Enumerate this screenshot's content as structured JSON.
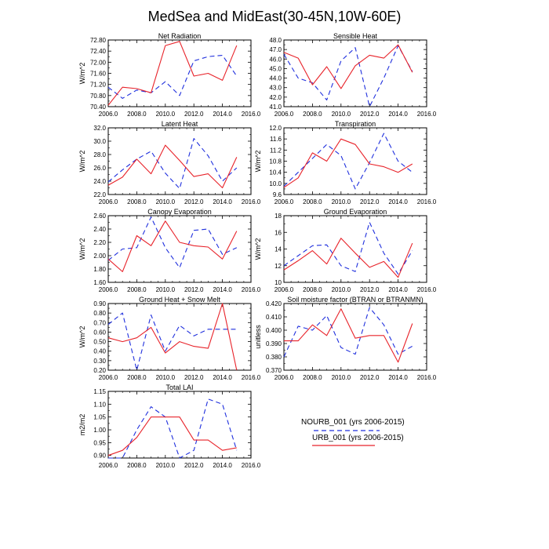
{
  "figure": {
    "title": "MedSea and MidEast(30-45N,10W-60E)"
  },
  "legend": {
    "entries": [
      {
        "name": "NOURB_001 (yrs 2006-2015)",
        "color": "#1f2fdd",
        "style": "dashed"
      },
      {
        "name": "URB_001 (yrs 2006-2015)",
        "color": "#e8232a",
        "style": "solid"
      }
    ]
  },
  "chart_data": [
    {
      "type": "line",
      "title": "Net Radiation",
      "ylabel": "W/m^2",
      "xlim": [
        2006,
        2016
      ],
      "xticks": [
        2006,
        2008,
        2010,
        2012,
        2014,
        2016
      ],
      "xtick_labels": [
        "2006.0",
        "2008.0",
        "2010.0",
        "2012.0",
        "2014.0",
        "2016.0"
      ],
      "ylim": [
        70.4,
        72.8
      ],
      "yticks": [
        70.4,
        70.8,
        71.2,
        71.6,
        72.0,
        72.4,
        72.8
      ],
      "ytick_labels": [
        "70.40",
        "70.80",
        "71.20",
        "71.60",
        "72.00",
        "72.40",
        "72.80"
      ],
      "x": [
        2006,
        2007,
        2008,
        2009,
        2010,
        2011,
        2012,
        2013,
        2014,
        2015
      ],
      "series": [
        {
          "name": "NOURB_001",
          "values": [
            71.1,
            70.7,
            71.0,
            70.9,
            71.3,
            70.8,
            72.05,
            72.2,
            72.25,
            71.5
          ]
        },
        {
          "name": "URB_001",
          "values": [
            70.45,
            71.1,
            71.05,
            70.9,
            72.6,
            72.75,
            71.5,
            71.6,
            71.35,
            72.6
          ]
        }
      ]
    },
    {
      "type": "line",
      "title": "Sensible Heat",
      "ylabel": "",
      "xlim": [
        2006,
        2016
      ],
      "xticks": [
        2006,
        2008,
        2010,
        2012,
        2014,
        2016
      ],
      "xtick_labels": [
        "2006.0",
        "2008.0",
        "2010.0",
        "2012.0",
        "2014.0",
        "2016.0"
      ],
      "ylim": [
        41,
        48
      ],
      "yticks": [
        41,
        42,
        43,
        44,
        45,
        46,
        47,
        48
      ],
      "ytick_labels": [
        "41.0",
        "42.0",
        "43.0",
        "44.0",
        "45.0",
        "46.0",
        "47.0",
        "48.0"
      ],
      "x": [
        2006,
        2007,
        2008,
        2009,
        2010,
        2011,
        2012,
        2013,
        2014,
        2015
      ],
      "series": [
        {
          "name": "NOURB_001",
          "values": [
            46.5,
            44.0,
            43.5,
            41.7,
            45.8,
            47.2,
            41.0,
            44.0,
            47.4,
            44.7
          ]
        },
        {
          "name": "URB_001",
          "values": [
            46.7,
            46.1,
            43.3,
            45.2,
            42.9,
            45.3,
            46.4,
            46.1,
            47.5,
            44.6
          ]
        }
      ]
    },
    {
      "type": "line",
      "title": "Latent Heat",
      "ylabel": "W/m^2",
      "xlim": [
        2006,
        2016
      ],
      "xticks": [
        2006,
        2008,
        2010,
        2012,
        2014,
        2016
      ],
      "xtick_labels": [
        "2006.0",
        "2008.0",
        "2010.0",
        "2012.0",
        "2014.0",
        "2016.0"
      ],
      "ylim": [
        22,
        32
      ],
      "yticks": [
        22,
        24,
        26,
        28,
        30,
        32
      ],
      "ytick_labels": [
        "22.0",
        "24.0",
        "26.0",
        "28.0",
        "30.0",
        "32.0"
      ],
      "x": [
        2006,
        2007,
        2008,
        2009,
        2010,
        2011,
        2012,
        2013,
        2014,
        2015
      ],
      "series": [
        {
          "name": "NOURB_001",
          "values": [
            23.9,
            25.7,
            27.3,
            28.5,
            25.2,
            22.9,
            30.4,
            27.8,
            24.0,
            26.0
          ]
        },
        {
          "name": "URB_001",
          "values": [
            23.4,
            24.6,
            27.3,
            25.1,
            29.4,
            27.1,
            24.7,
            25.1,
            23.0,
            27.6
          ]
        }
      ]
    },
    {
      "type": "line",
      "title": "Transpiration",
      "ylabel": "W/m^2",
      "xlim": [
        2006,
        2016
      ],
      "xticks": [
        2006,
        2008,
        2010,
        2012,
        2014,
        2016
      ],
      "xtick_labels": [
        "2006.0",
        "2008.0",
        "2010.0",
        "2012.0",
        "2014.0",
        "2016.0"
      ],
      "ylim": [
        9.6,
        12.0
      ],
      "yticks": [
        9.6,
        10.0,
        10.4,
        10.8,
        11.2,
        11.6,
        12.0
      ],
      "ytick_labels": [
        "9.6",
        "10.0",
        "10.4",
        "10.8",
        "11.2",
        "11.6",
        "12.0"
      ],
      "x": [
        2006,
        2007,
        2008,
        2009,
        2010,
        2011,
        2012,
        2013,
        2014,
        2015
      ],
      "series": [
        {
          "name": "NOURB_001",
          "values": [
            9.9,
            10.4,
            10.9,
            11.4,
            11.0,
            9.8,
            10.75,
            11.8,
            10.8,
            10.4
          ]
        },
        {
          "name": "URB_001",
          "values": [
            9.85,
            10.2,
            11.1,
            10.8,
            11.6,
            11.4,
            10.7,
            10.6,
            10.4,
            10.7
          ]
        }
      ]
    },
    {
      "type": "line",
      "title": "Canopy Evaporation",
      "ylabel": "W/m^2",
      "xlim": [
        2006,
        2016
      ],
      "xticks": [
        2006,
        2008,
        2010,
        2012,
        2014,
        2016
      ],
      "xtick_labels": [
        "2006.0",
        "2008.0",
        "2010.0",
        "2012.0",
        "2014.0",
        "2016.0"
      ],
      "ylim": [
        1.6,
        2.6
      ],
      "yticks": [
        1.6,
        1.8,
        2.0,
        2.2,
        2.4,
        2.6
      ],
      "ytick_labels": [
        "1.60",
        "1.80",
        "2.00",
        "2.20",
        "2.40",
        "2.60"
      ],
      "x": [
        2006,
        2007,
        2008,
        2009,
        2010,
        2011,
        2012,
        2013,
        2014,
        2015
      ],
      "series": [
        {
          "name": "NOURB_001",
          "values": [
            1.93,
            2.1,
            2.12,
            2.58,
            2.12,
            1.82,
            2.38,
            2.4,
            2.02,
            2.12
          ]
        },
        {
          "name": "URB_001",
          "values": [
            1.95,
            1.76,
            2.3,
            2.15,
            2.52,
            2.2,
            2.15,
            2.13,
            1.95,
            2.37
          ]
        }
      ]
    },
    {
      "type": "line",
      "title": "Ground Evaporation",
      "ylabel": "W/m^2",
      "xlim": [
        2006,
        2016
      ],
      "xticks": [
        2006,
        2008,
        2010,
        2012,
        2014,
        2016
      ],
      "xtick_labels": [
        "2006.0",
        "2008.0",
        "2010.0",
        "2012.0",
        "2014.0",
        "2016.0"
      ],
      "ylim": [
        10,
        18
      ],
      "yticks": [
        10,
        12,
        14,
        16,
        18
      ],
      "ytick_labels": [
        "10",
        "12",
        "14",
        "16",
        "18"
      ],
      "x": [
        2006,
        2007,
        2008,
        2009,
        2010,
        2011,
        2012,
        2013,
        2014,
        2015
      ],
      "series": [
        {
          "name": "NOURB_001",
          "values": [
            12.0,
            13.2,
            14.4,
            14.5,
            12.0,
            11.3,
            17.2,
            13.5,
            11.0,
            13.8
          ]
        },
        {
          "name": "URB_001",
          "values": [
            11.5,
            12.6,
            13.8,
            12.2,
            15.3,
            13.5,
            11.8,
            12.5,
            10.6,
            14.7
          ]
        }
      ]
    },
    {
      "type": "line",
      "title": "Ground Heat + Snow Melt",
      "ylabel": "W/m^2",
      "xlim": [
        2006,
        2016
      ],
      "xticks": [
        2006,
        2008,
        2010,
        2012,
        2014,
        2016
      ],
      "xtick_labels": [
        "2006.0",
        "2008.0",
        "2010.0",
        "2012.0",
        "2014.0",
        "2016.0"
      ],
      "ylim": [
        0.2,
        0.9
      ],
      "yticks": [
        0.2,
        0.3,
        0.4,
        0.5,
        0.6,
        0.7,
        0.8,
        0.9
      ],
      "ytick_labels": [
        "0.20",
        "0.30",
        "0.40",
        "0.50",
        "0.60",
        "0.70",
        "0.80",
        "0.90"
      ],
      "x": [
        2006,
        2007,
        2008,
        2009,
        2010,
        2011,
        2012,
        2013,
        2014,
        2015
      ],
      "series": [
        {
          "name": "NOURB_001",
          "values": [
            0.68,
            0.8,
            0.2,
            0.78,
            0.4,
            0.67,
            0.56,
            0.63,
            0.63,
            0.63
          ]
        },
        {
          "name": "URB_001",
          "values": [
            0.54,
            0.5,
            0.54,
            0.65,
            0.38,
            0.5,
            0.45,
            0.43,
            0.9,
            0.2
          ]
        }
      ]
    },
    {
      "type": "line",
      "title": "Soil moisture factor (BTRAN or BTRANMN)",
      "ylabel": "unitless",
      "xlim": [
        2006,
        2016
      ],
      "xticks": [
        2006,
        2008,
        2010,
        2012,
        2014,
        2016
      ],
      "xtick_labels": [
        "2006.0",
        "2008.0",
        "2010.0",
        "2012.0",
        "2014.0",
        "2016.0"
      ],
      "ylim": [
        0.37,
        0.42
      ],
      "yticks": [
        0.37,
        0.38,
        0.39,
        0.4,
        0.41,
        0.42
      ],
      "ytick_labels": [
        "0.370",
        "0.380",
        "0.390",
        "0.400",
        "0.410",
        "0.420"
      ],
      "x": [
        2006,
        2007,
        2008,
        2009,
        2010,
        2011,
        2012,
        2013,
        2014,
        2015
      ],
      "series": [
        {
          "name": "NOURB_001",
          "values": [
            0.38,
            0.403,
            0.4,
            0.411,
            0.387,
            0.382,
            0.417,
            0.404,
            0.382,
            0.388
          ]
        },
        {
          "name": "URB_001",
          "values": [
            0.392,
            0.392,
            0.404,
            0.396,
            0.416,
            0.394,
            0.396,
            0.396,
            0.376,
            0.405
          ]
        }
      ]
    },
    {
      "type": "line",
      "title": "Total LAI",
      "ylabel": "m2/m2",
      "xlim": [
        2006,
        2016
      ],
      "xticks": [
        2006,
        2008,
        2010,
        2012,
        2014,
        2016
      ],
      "xtick_labels": [
        "2006.0",
        "2008.0",
        "2010.0",
        "2012.0",
        "2014.0",
        "2016.0"
      ],
      "ylim": [
        0.89,
        1.15
      ],
      "yticks": [
        0.9,
        0.95,
        1.0,
        1.05,
        1.1,
        1.15
      ],
      "ytick_labels": [
        "0.90",
        "0.95",
        "1.00",
        "1.05",
        "1.10",
        "1.15"
      ],
      "x": [
        2006,
        2007,
        2008,
        2009,
        2010,
        2011,
        2012,
        2013,
        2014,
        2015
      ],
      "series": [
        {
          "name": "NOURB_001",
          "values": [
            0.89,
            0.89,
            1.0,
            1.09,
            1.05,
            0.89,
            0.92,
            1.12,
            1.1,
            0.92
          ]
        },
        {
          "name": "URB_001",
          "values": [
            0.9,
            0.92,
            0.97,
            1.05,
            1.05,
            1.05,
            0.96,
            0.96,
            0.92,
            0.93
          ]
        }
      ]
    }
  ]
}
